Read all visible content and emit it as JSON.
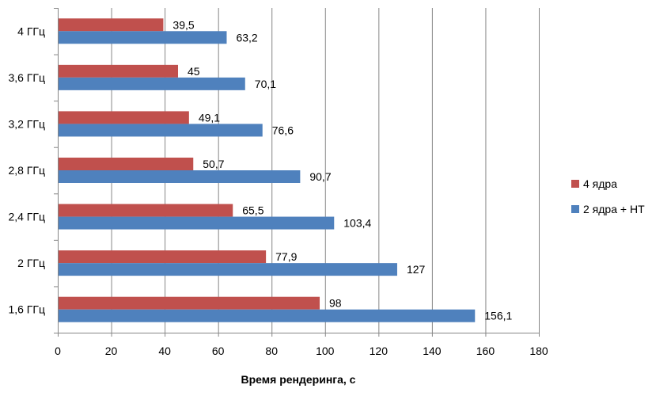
{
  "chart_data": {
    "type": "bar",
    "orientation": "horizontal",
    "categories": [
      "4 ГГц",
      "3,6 ГГц",
      "3,2 ГГц",
      "2,8 ГГц",
      "2,4 ГГц",
      "2 ГГц",
      "1,6 ГГц"
    ],
    "series": [
      {
        "name": "4 ядра",
        "color": "#c0504d",
        "values": [
          39.5,
          45,
          49.1,
          50.7,
          65.5,
          77.9,
          98
        ],
        "labels": [
          "39,5",
          "45",
          "49,1",
          "50,7",
          "65,5",
          "77,9",
          "98"
        ]
      },
      {
        "name": "2 ядра + HT",
        "color": "#4f81bd",
        "values": [
          63.2,
          70.1,
          76.6,
          90.7,
          103.4,
          127,
          156.1
        ],
        "labels": [
          "63,2",
          "70,1",
          "76,6",
          "90,7",
          "103,4",
          "127",
          "156,1"
        ]
      }
    ],
    "xlabel": "Время рендеринга, с",
    "ylabel": "",
    "xlim": [
      0,
      180
    ],
    "xticks": [
      0,
      20,
      40,
      60,
      80,
      100,
      120,
      140,
      160,
      180
    ],
    "grid": "vertical",
    "legend": "right"
  }
}
